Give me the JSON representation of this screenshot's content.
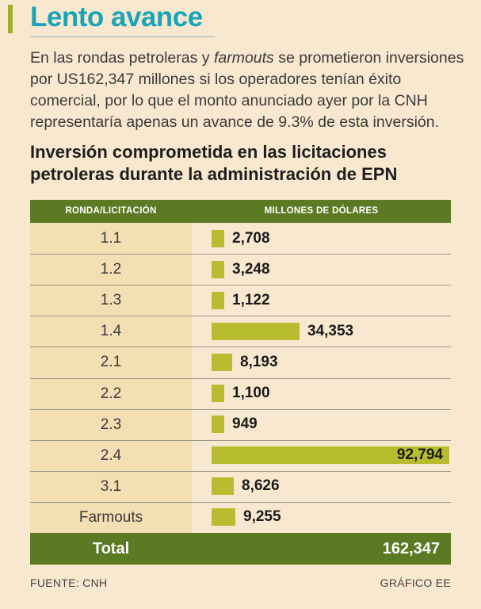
{
  "heading": "Lento avance",
  "intro": {
    "part1": "En las rondas petroleras y ",
    "emphasis": "farmouts",
    "part2": " se prometieron inversiones por US162,347 millones si los operadores tenían éxito comercial, por lo que el monto anunciado ayer por la CNH representaría apenas un avance de 9.3% de esta inversión."
  },
  "accent_color": "#1aa4b8",
  "header_color": "#5c7a23",
  "bar_color": "#b7bd2f",
  "chart_data": {
    "type": "bar",
    "orientation": "horizontal",
    "title": "Inversión comprometida en las licitaciones petroleras durante la administración de EPN",
    "column_headers": [
      "RONDA/LICITACIÓN",
      "MILLONES DE DÓLARES"
    ],
    "categories": [
      "1.1",
      "1.2",
      "1.3",
      "1.4",
      "2.1",
      "2.2",
      "2.3",
      "2.4",
      "3.1",
      "Farmouts"
    ],
    "values": [
      2708,
      3248,
      1122,
      34353,
      8193,
      1100,
      949,
      92794,
      8626,
      9255
    ],
    "value_labels": [
      "2,708",
      "3,248",
      "1,122",
      "34,353",
      "8,193",
      "1,100",
      "949",
      "92,794",
      "8,626",
      "9,255"
    ],
    "xlim": [
      0,
      92794
    ],
    "total_label": "Total",
    "total_value": "162,347"
  },
  "source": "FUENTE: CNH",
  "credit": "GRÁFICO EE"
}
